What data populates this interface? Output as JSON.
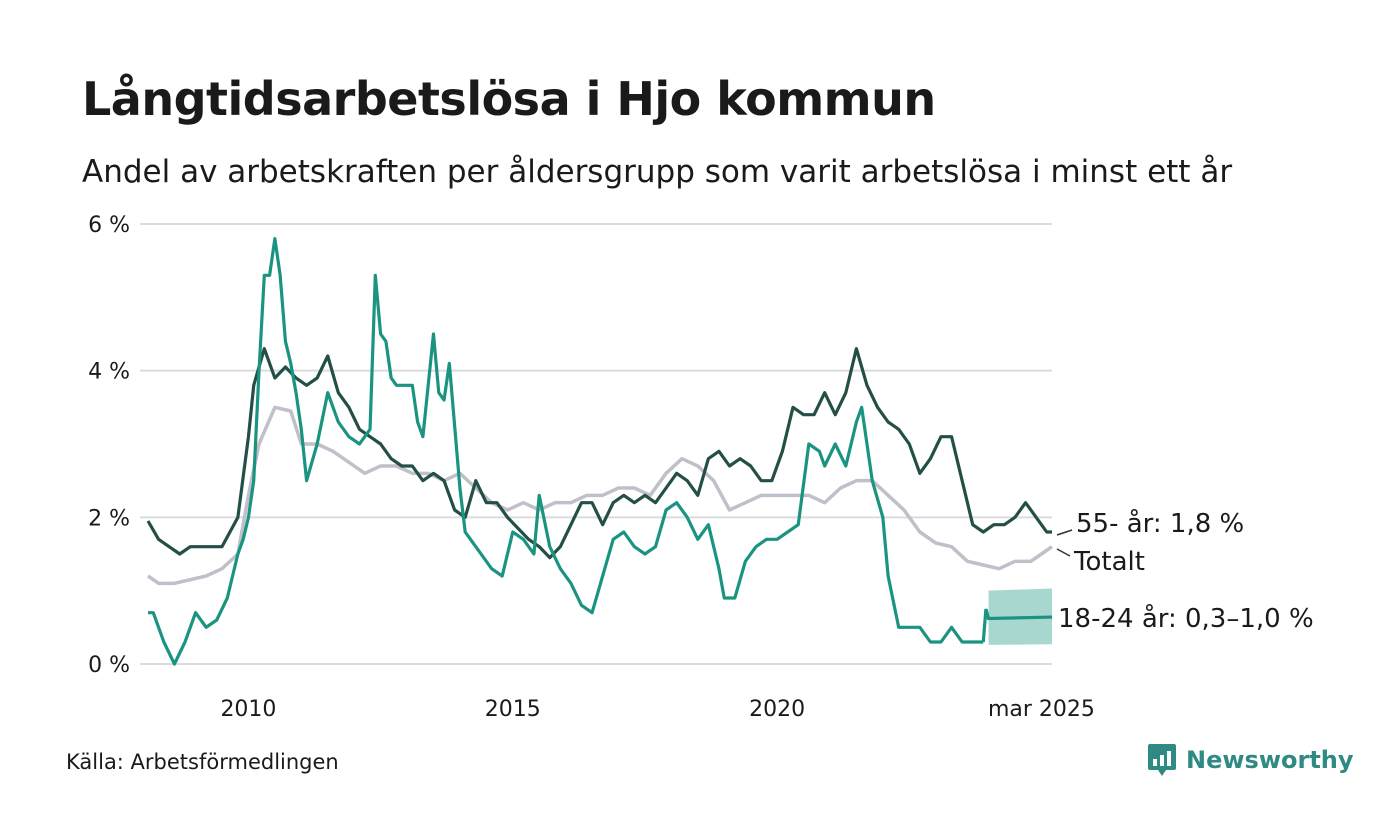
{
  "header": {
    "title": "Långtidsarbetslösa i Hjo kommun",
    "subtitle": "Andel av arbetskraften per åldersgrupp som varit arbetslösa i minst ett år"
  },
  "footer": {
    "source": "Källa: Arbetsförmedlingen",
    "brand": "Newsworthy",
    "brand_color": "#2f8a84"
  },
  "chart_data": {
    "type": "line",
    "ylim": [
      0,
      6
    ],
    "xlim": [
      2008.1,
      2025.2
    ],
    "y_ticks": [
      {
        "value": 0,
        "label": "0 %"
      },
      {
        "value": 2,
        "label": "2 %"
      },
      {
        "value": 4,
        "label": "4 %"
      },
      {
        "value": 6,
        "label": "6 %"
      }
    ],
    "x_ticks": [
      {
        "value": 2010,
        "label": "2010"
      },
      {
        "value": 2015,
        "label": "2015"
      },
      {
        "value": 2020,
        "label": "2020"
      },
      {
        "value": 2025,
        "label": "mar 2025"
      }
    ],
    "grid": true,
    "series": [
      {
        "name": "Totalt",
        "label": "Totalt",
        "color": "#c0bfca",
        "x": [
          2008.1,
          2008.3,
          2008.6,
          2008.9,
          2009.2,
          2009.5,
          2009.8,
          2010.0,
          2010.2,
          2010.5,
          2010.8,
          2011.0,
          2011.3,
          2011.6,
          2011.9,
          2012.2,
          2012.5,
          2012.8,
          2013.1,
          2013.4,
          2013.7,
          2014.0,
          2014.3,
          2014.6,
          2014.9,
          2015.2,
          2015.5,
          2015.8,
          2016.1,
          2016.4,
          2016.7,
          2017.0,
          2017.3,
          2017.6,
          2017.9,
          2018.2,
          2018.5,
          2018.8,
          2019.1,
          2019.4,
          2019.7,
          2020.0,
          2020.3,
          2020.6,
          2020.9,
          2021.2,
          2021.5,
          2021.8,
          2022.1,
          2022.4,
          2022.7,
          2023.0,
          2023.3,
          2023.6,
          2023.9,
          2024.2,
          2024.5,
          2024.8,
          2025.0,
          2025.2
        ],
        "values": [
          1.2,
          1.1,
          1.1,
          1.15,
          1.2,
          1.3,
          1.5,
          2.3,
          3.0,
          3.5,
          3.45,
          3.0,
          3.0,
          2.9,
          2.75,
          2.6,
          2.7,
          2.7,
          2.6,
          2.6,
          2.5,
          2.6,
          2.4,
          2.2,
          2.1,
          2.2,
          2.1,
          2.2,
          2.2,
          2.3,
          2.3,
          2.4,
          2.4,
          2.3,
          2.6,
          2.8,
          2.7,
          2.5,
          2.1,
          2.2,
          2.3,
          2.3,
          2.3,
          2.3,
          2.2,
          2.4,
          2.5,
          2.5,
          2.3,
          2.1,
          1.8,
          1.65,
          1.6,
          1.4,
          1.35,
          1.3,
          1.4,
          1.4,
          1.5,
          1.6
        ]
      },
      {
        "name": "55- år",
        "label": "55- år: 1,8 %",
        "color": "#234f47",
        "x": [
          2008.1,
          2008.3,
          2008.5,
          2008.7,
          2008.9,
          2009.2,
          2009.5,
          2009.8,
          2010.0,
          2010.1,
          2010.3,
          2010.5,
          2010.7,
          2010.9,
          2011.1,
          2011.3,
          2011.5,
          2011.7,
          2011.9,
          2012.1,
          2012.3,
          2012.5,
          2012.7,
          2012.9,
          2013.1,
          2013.3,
          2013.5,
          2013.7,
          2013.9,
          2014.1,
          2014.3,
          2014.5,
          2014.7,
          2014.9,
          2015.1,
          2015.3,
          2015.5,
          2015.7,
          2015.9,
          2016.1,
          2016.3,
          2016.5,
          2016.7,
          2016.9,
          2017.1,
          2017.3,
          2017.5,
          2017.7,
          2017.9,
          2018.1,
          2018.3,
          2018.5,
          2018.7,
          2018.9,
          2019.1,
          2019.3,
          2019.5,
          2019.7,
          2019.9,
          2020.1,
          2020.3,
          2020.5,
          2020.7,
          2020.9,
          2021.1,
          2021.3,
          2021.5,
          2021.7,
          2021.9,
          2022.1,
          2022.3,
          2022.5,
          2022.7,
          2022.9,
          2023.1,
          2023.3,
          2023.5,
          2023.7,
          2023.9,
          2024.1,
          2024.3,
          2024.5,
          2024.7,
          2024.9,
          2025.1,
          2025.2
        ],
        "values": [
          1.95,
          1.7,
          1.6,
          1.5,
          1.6,
          1.6,
          1.6,
          2.0,
          3.1,
          3.8,
          4.3,
          3.9,
          4.05,
          3.9,
          3.8,
          3.9,
          4.2,
          3.7,
          3.5,
          3.2,
          3.1,
          3.0,
          2.8,
          2.7,
          2.7,
          2.5,
          2.6,
          2.5,
          2.1,
          2.0,
          2.5,
          2.2,
          2.2,
          2.0,
          1.85,
          1.7,
          1.6,
          1.45,
          1.6,
          1.9,
          2.2,
          2.2,
          1.9,
          2.2,
          2.3,
          2.2,
          2.3,
          2.2,
          2.4,
          2.6,
          2.5,
          2.3,
          2.8,
          2.9,
          2.7,
          2.8,
          2.7,
          2.5,
          2.5,
          2.9,
          3.5,
          3.4,
          3.4,
          3.7,
          3.4,
          3.7,
          4.3,
          3.8,
          3.5,
          3.3,
          3.2,
          3.0,
          2.6,
          2.8,
          3.1,
          3.1,
          2.5,
          1.9,
          1.8,
          1.9,
          1.9,
          2.0,
          2.2,
          2.0,
          1.8,
          1.8
        ]
      },
      {
        "name": "18-24 år",
        "label": "18-24 år: 0,3–1,0 %",
        "color": "#1a9481",
        "band_color": "#a3d5cd",
        "x": [
          2008.1,
          2008.2,
          2008.4,
          2008.6,
          2008.8,
          2009.0,
          2009.2,
          2009.4,
          2009.6,
          2009.8,
          2009.9,
          2010.0,
          2010.1,
          2010.2,
          2010.3,
          2010.4,
          2010.5,
          2010.6,
          2010.7,
          2010.8,
          2010.9,
          2011.0,
          2011.1,
          2011.3,
          2011.5,
          2011.7,
          2011.9,
          2012.1,
          2012.3,
          2012.4,
          2012.5,
          2012.6,
          2012.7,
          2012.8,
          2012.9,
          2013.1,
          2013.2,
          2013.3,
          2013.5,
          2013.6,
          2013.7,
          2013.8,
          2014.0,
          2014.1,
          2014.2,
          2014.4,
          2014.6,
          2014.8,
          2015.0,
          2015.2,
          2015.4,
          2015.5,
          2015.7,
          2015.9,
          2016.1,
          2016.3,
          2016.5,
          2016.7,
          2016.9,
          2017.1,
          2017.3,
          2017.5,
          2017.7,
          2017.9,
          2018.1,
          2018.3,
          2018.5,
          2018.7,
          2018.9,
          2019.0,
          2019.2,
          2019.4,
          2019.6,
          2019.8,
          2020.0,
          2020.2,
          2020.4,
          2020.6,
          2020.8,
          2020.9,
          2021.1,
          2021.3,
          2021.5,
          2021.6,
          2021.8,
          2022.0,
          2022.1,
          2022.3,
          2022.5,
          2022.7,
          2022.9,
          2023.1,
          2023.3,
          2023.5,
          2023.7,
          2023.9
        ],
        "values": [
          0.7,
          0.7,
          0.3,
          0.0,
          0.3,
          0.7,
          0.5,
          0.6,
          0.9,
          1.5,
          1.7,
          2.0,
          2.5,
          4.0,
          5.3,
          5.3,
          5.8,
          5.3,
          4.4,
          4.1,
          3.7,
          3.2,
          2.5,
          3.0,
          3.7,
          3.3,
          3.1,
          3.0,
          3.2,
          5.3,
          4.5,
          4.4,
          3.9,
          3.8,
          3.8,
          3.8,
          3.3,
          3.1,
          4.5,
          3.7,
          3.6,
          4.1,
          2.4,
          1.8,
          1.7,
          1.5,
          1.3,
          1.2,
          1.8,
          1.7,
          1.5,
          2.3,
          1.6,
          1.3,
          1.1,
          0.8,
          0.7,
          1.2,
          1.7,
          1.8,
          1.6,
          1.5,
          1.6,
          2.1,
          2.2,
          2.0,
          1.7,
          1.9,
          1.3,
          0.9,
          0.9,
          1.4,
          1.6,
          1.7,
          1.7,
          1.8,
          1.9,
          3.0,
          2.9,
          2.7,
          3.0,
          2.7,
          3.3,
          3.5,
          2.5,
          2.0,
          1.2,
          0.5,
          0.5,
          0.5,
          0.3,
          0.3,
          0.5,
          0.3,
          0.3,
          0.3
        ],
        "forecast": {
          "x": [
            2024.0,
            2025.2
          ],
          "values": [
            0.62,
            0.64
          ],
          "band_low": [
            0.26,
            0.27
          ],
          "band_high": [
            1.0,
            1.03
          ]
        }
      }
    ]
  }
}
